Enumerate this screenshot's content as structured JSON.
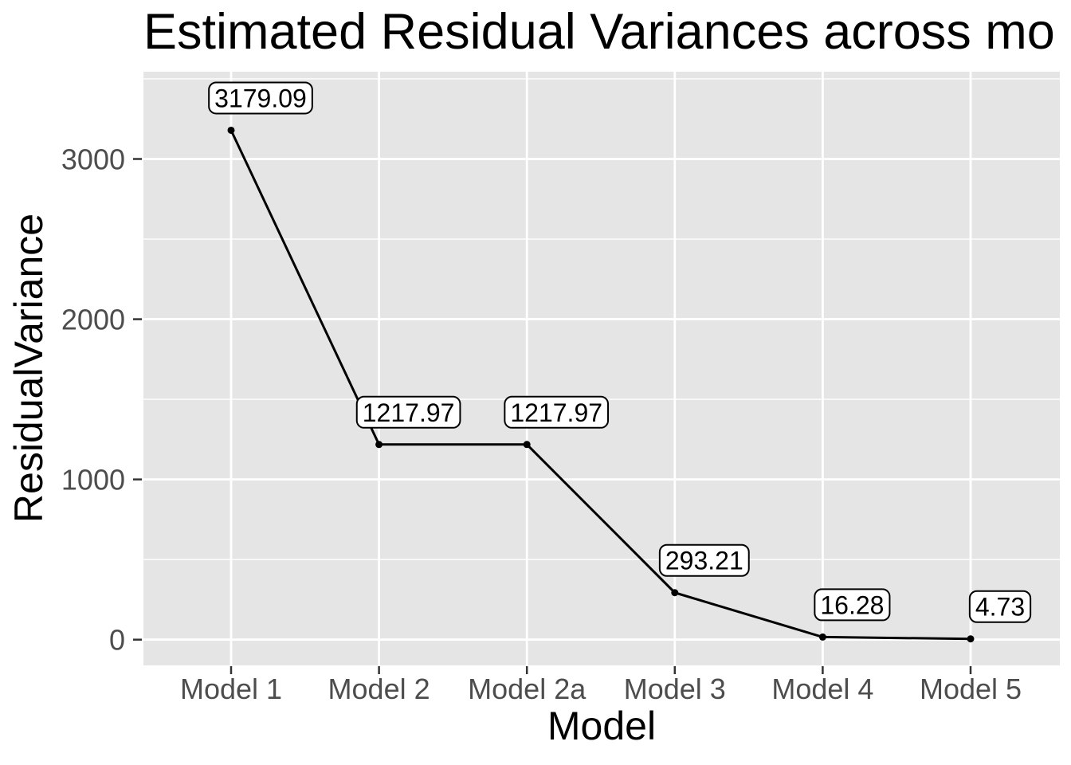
{
  "chart_data": {
    "type": "line",
    "title": "Estimated Residual Variances across mo",
    "xlabel": "Model",
    "ylabel": "ResidualVariance",
    "categories": [
      "Model 1",
      "Model 2",
      "Model 2a",
      "Model 3",
      "Model 4",
      "Model 5"
    ],
    "series": [
      {
        "name": "ResidualVariance",
        "values": [
          3179.09,
          1217.97,
          1217.97,
          293.21,
          16.28,
          4.73
        ]
      }
    ],
    "point_labels": [
      "3179.09",
      "1217.97",
      "1217.97",
      "293.21",
      "16.28",
      "4.73"
    ],
    "y_ticks": [
      0,
      1000,
      2000,
      3000
    ],
    "y_tick_labels": [
      "0",
      "1000",
      "2000",
      "3000"
    ],
    "y_minor_ticks": [
      500,
      1500,
      2500,
      3500
    ],
    "ylim": [
      -160,
      3545
    ],
    "grid": true,
    "legend": false,
    "colors": {
      "panel_bg": "#E5E5E5",
      "grid": "#FFFFFF",
      "line": "#000000",
      "point": "#000000",
      "label_bg": "#FFFFFF",
      "label_border": "#000000",
      "label_text": "#000000",
      "tick_text": "#4D4D4D",
      "tick_mark": "#333333",
      "axis_title_text": "#000000"
    }
  }
}
